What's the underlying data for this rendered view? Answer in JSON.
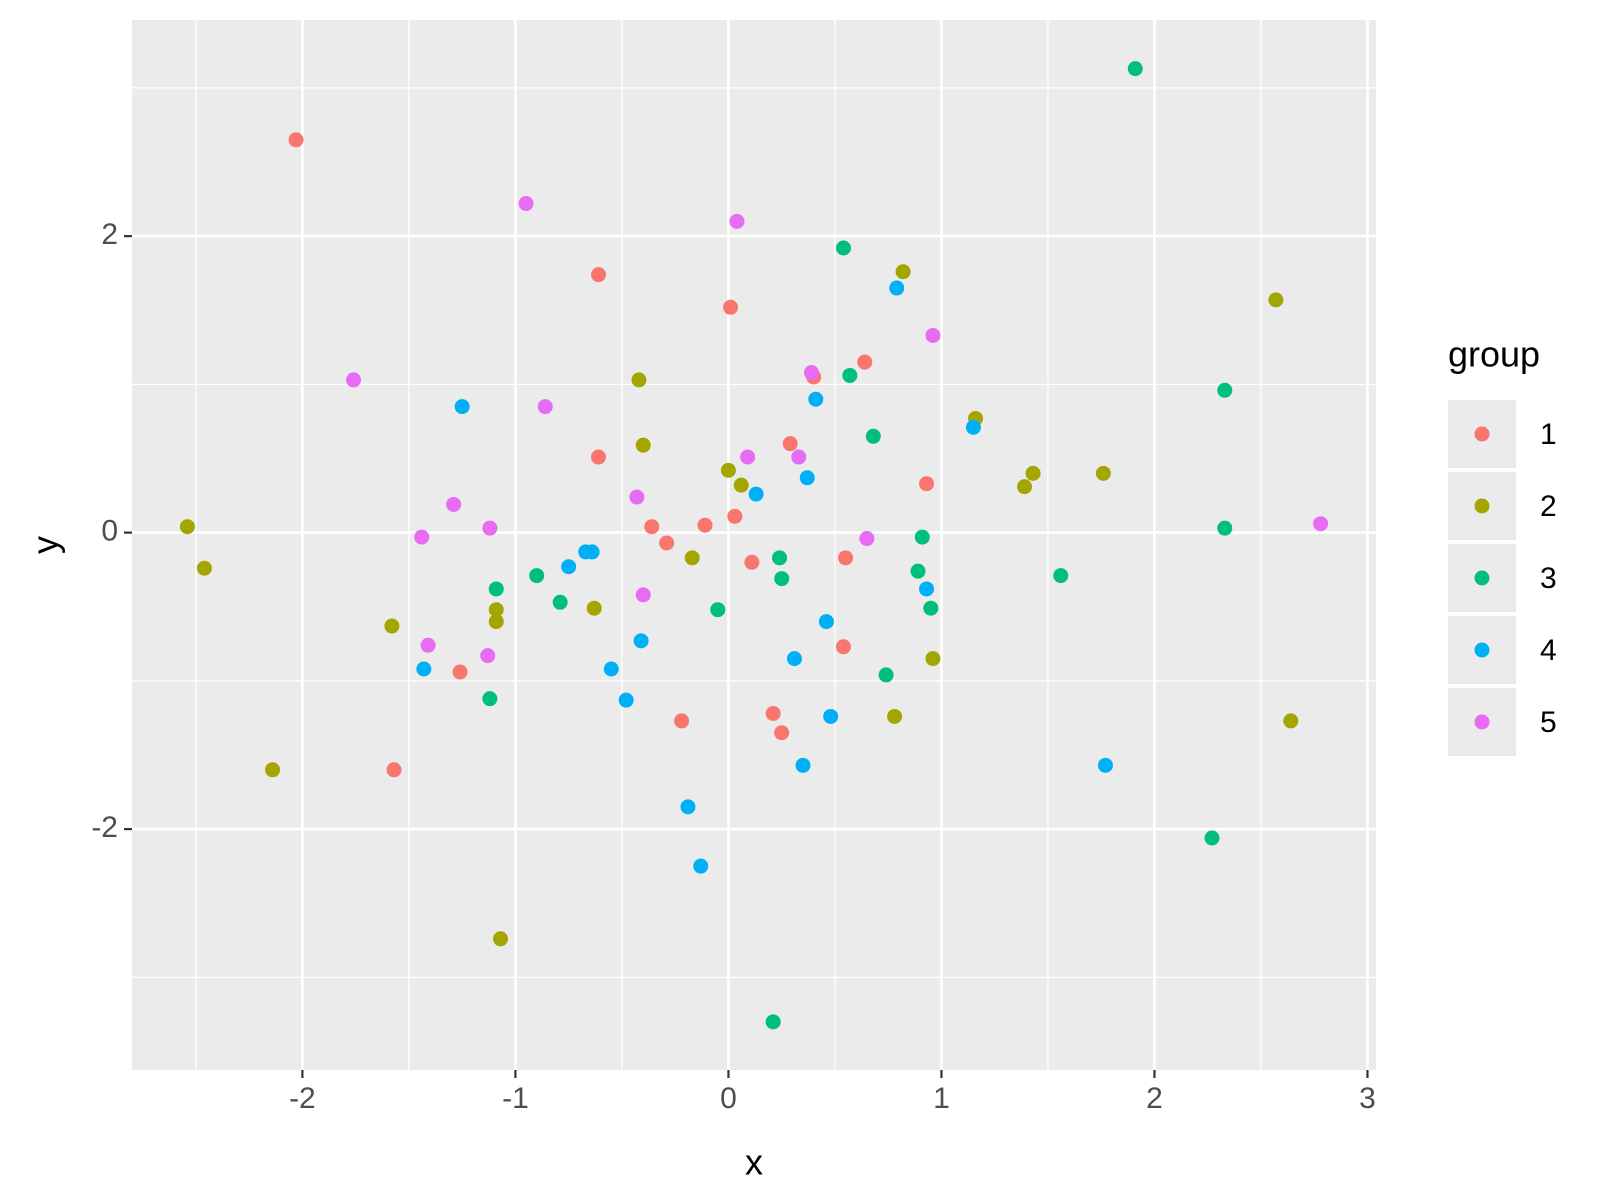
{
  "chart_data": {
    "type": "scatter",
    "x_label": "x",
    "y_label": "y",
    "legend_title": "group",
    "legend": "right",
    "grid": true,
    "xlim": [
      -2.8,
      3.04
    ],
    "ylim": [
      -3.625,
      3.458
    ],
    "xticks": [
      -2,
      -1,
      0,
      1,
      2,
      3
    ],
    "yticks": [
      -2,
      0,
      2
    ],
    "series": [
      {
        "name": "1",
        "color": "#F8766D",
        "x": [
          -2.03,
          -0.61,
          0.01,
          0.64,
          0.4,
          -0.61,
          0.29,
          0.93,
          -0.36,
          -0.29,
          -0.11,
          0.03,
          0.11,
          0.55,
          0.54,
          -1.26,
          -1.57,
          -0.22,
          0.21,
          0.25
        ],
        "values": [
          2.65,
          1.74,
          1.52,
          1.15,
          1.05,
          0.51,
          0.6,
          0.33,
          0.04,
          -0.07,
          0.05,
          0.11,
          -0.2,
          -0.17,
          -0.77,
          -0.94,
          -1.6,
          -1.27,
          -1.22,
          -1.35
        ]
      },
      {
        "name": "2",
        "color": "#A3A500",
        "x": [
          -2.54,
          -2.46,
          -2.14,
          -1.58,
          -1.09,
          -1.09,
          -1.07,
          -0.42,
          -0.4,
          -0.63,
          -0.17,
          0.0,
          0.06,
          0.82,
          1.16,
          1.39,
          1.43,
          1.76,
          0.96,
          0.78,
          2.57,
          2.64
        ],
        "values": [
          0.04,
          -0.24,
          -1.6,
          -0.63,
          -0.52,
          -0.6,
          -2.74,
          1.03,
          0.59,
          -0.51,
          -0.17,
          0.42,
          0.32,
          1.76,
          0.77,
          0.31,
          0.4,
          0.4,
          -0.85,
          -1.24,
          1.57,
          -1.27
        ]
      },
      {
        "name": "3",
        "color": "#00BF7D",
        "x": [
          1.91,
          0.54,
          0.57,
          0.68,
          2.33,
          2.33,
          0.91,
          0.89,
          0.95,
          1.56,
          0.24,
          0.25,
          -0.05,
          0.74,
          2.27,
          0.21,
          -0.9,
          -0.79,
          -1.09,
          -1.12
        ],
        "values": [
          3.13,
          1.92,
          1.06,
          0.65,
          0.96,
          0.03,
          -0.03,
          -0.26,
          -0.51,
          -0.29,
          -0.17,
          -0.31,
          -0.52,
          -0.96,
          -2.06,
          -3.3,
          -0.29,
          -0.47,
          -0.38,
          -1.12
        ]
      },
      {
        "name": "4",
        "color": "#00B0F6",
        "x": [
          -1.25,
          -1.43,
          -0.75,
          -0.67,
          -0.64,
          -0.55,
          -0.48,
          -0.41,
          -0.19,
          -0.13,
          0.13,
          0.37,
          0.41,
          0.79,
          1.15,
          0.93,
          0.46,
          0.31,
          0.48,
          0.35,
          1.77
        ],
        "values": [
          0.85,
          -0.92,
          -0.23,
          -0.13,
          -0.13,
          -0.92,
          -1.13,
          -0.73,
          -1.85,
          -2.25,
          0.26,
          0.37,
          0.9,
          1.65,
          0.71,
          -0.38,
          -0.6,
          -0.85,
          -1.24,
          -1.57,
          -1.57
        ]
      },
      {
        "name": "5",
        "color": "#E76BF3",
        "x": [
          -0.95,
          0.04,
          0.96,
          -1.76,
          -0.86,
          0.39,
          0.09,
          0.33,
          -0.43,
          -1.29,
          -1.12,
          -1.44,
          0.65,
          -0.4,
          -1.41,
          -1.13,
          2.78
        ],
        "values": [
          2.22,
          2.1,
          1.33,
          1.03,
          0.85,
          1.08,
          0.51,
          0.51,
          0.24,
          0.19,
          0.03,
          -0.03,
          -0.04,
          -0.42,
          -0.76,
          -0.83,
          0.06
        ]
      }
    ]
  }
}
